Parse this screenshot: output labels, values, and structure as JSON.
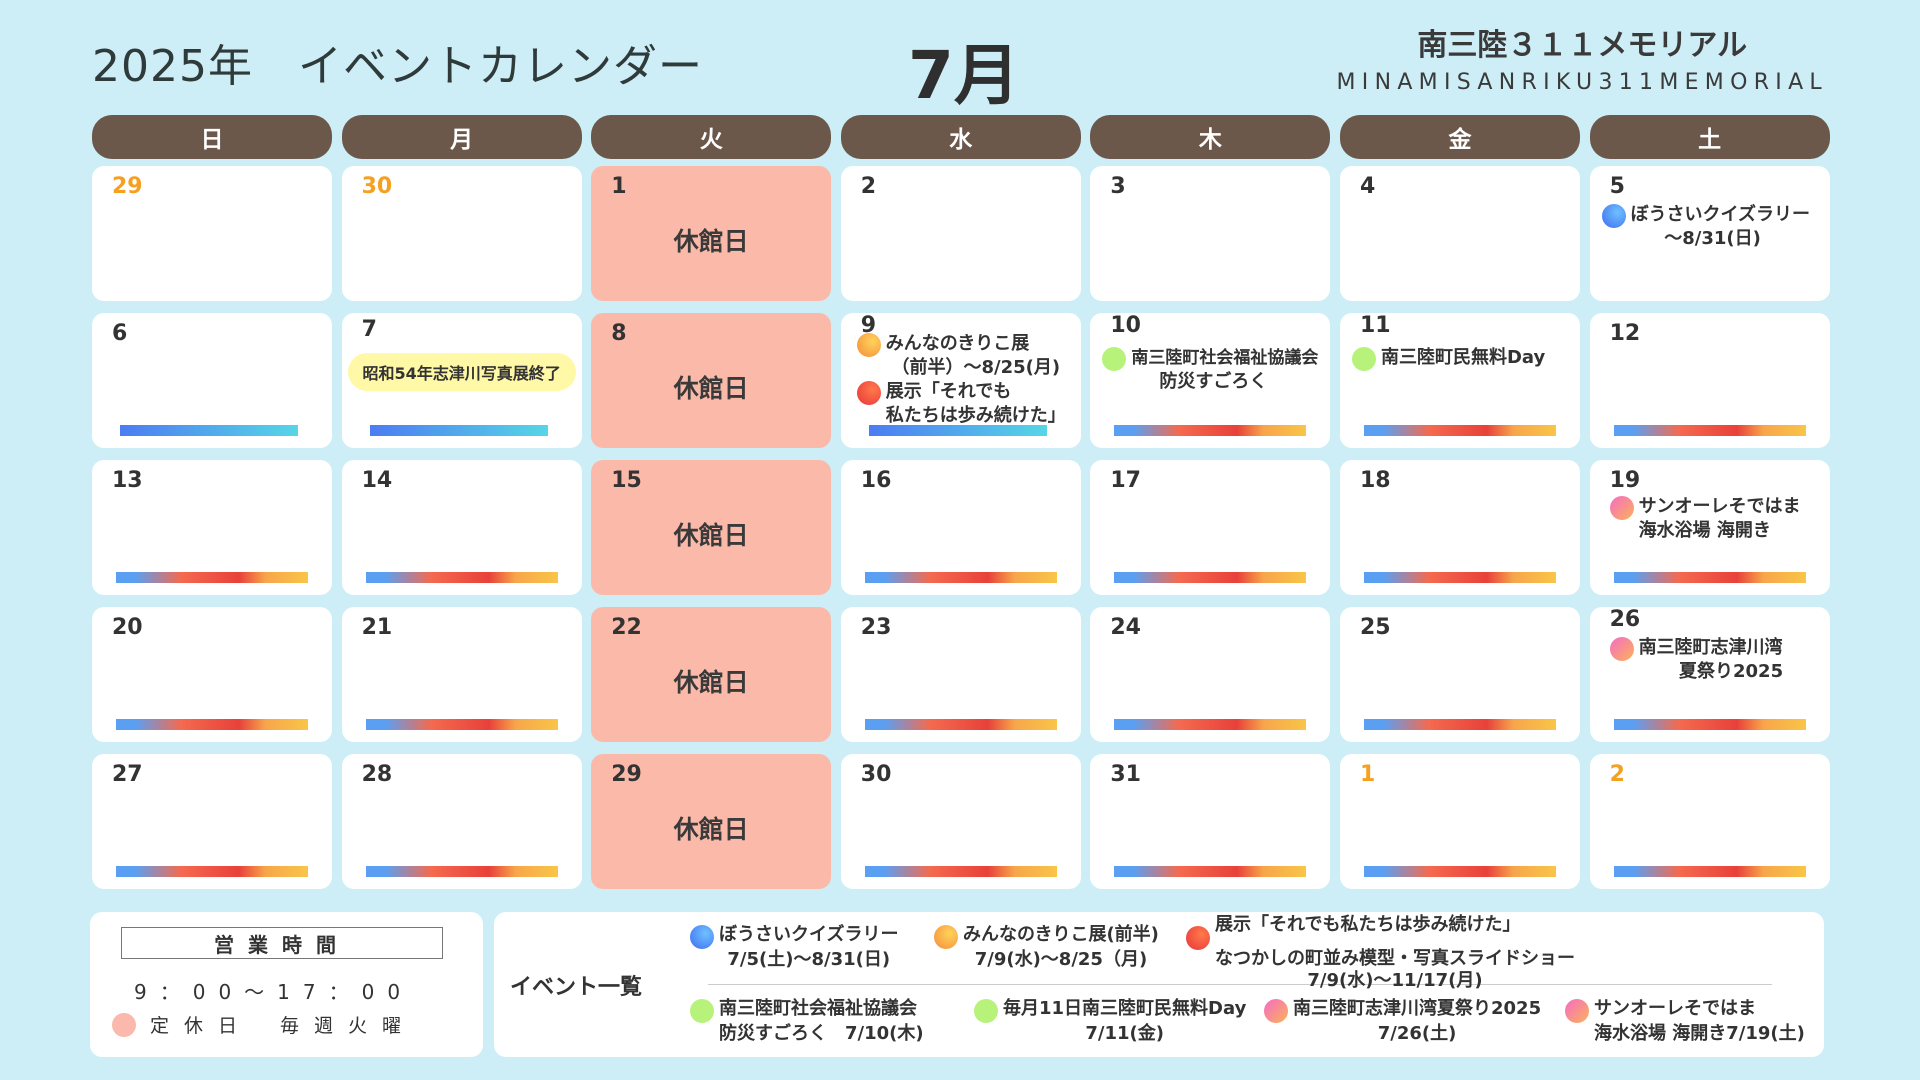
{
  "header": {
    "title": "2025年　イベントカレンダー",
    "month": "7月",
    "brand_jp": "南三陸３１１メモリアル",
    "brand_en": "MINAMISANRIKU311MEMORIAL"
  },
  "weekdays": [
    "日",
    "月",
    "火",
    "水",
    "木",
    "金",
    "土"
  ],
  "closed_label": "休館日",
  "days": {
    "w1": [
      "29",
      "30",
      "1",
      "2",
      "3",
      "4",
      "5"
    ],
    "w2": [
      "6",
      "7",
      "8",
      "9",
      "10",
      "11",
      "12"
    ],
    "w3": [
      "13",
      "14",
      "15",
      "16",
      "17",
      "18",
      "19"
    ],
    "w4": [
      "20",
      "21",
      "22",
      "23",
      "24",
      "25",
      "26"
    ],
    "w5": [
      "27",
      "28",
      "29",
      "30",
      "31",
      "1",
      "2"
    ]
  },
  "cell_events": {
    "jul5": {
      "line1": "ぼうさいクイズラリー",
      "line2": "〜8/31(日)"
    },
    "jul7": {
      "pill": "昭和54年志津川写真展終了"
    },
    "jul9": {
      "a1": "みんなのきりこ展",
      "a2": "（前半）〜8/25(月)",
      "b1": "展示「それでも",
      "b2": "私たちは歩み続けた」"
    },
    "jul10": {
      "line1": "南三陸町社会福祉協議会",
      "line2": "防災すごろく"
    },
    "jul11": {
      "line1": "南三陸町民無料Day"
    },
    "jul19": {
      "line1": "サンオーレそではま",
      "line2": "海水浴場 海開き"
    },
    "jul26": {
      "line1": "南三陸町志津川湾",
      "line2": "夏祭り2025"
    }
  },
  "hours": {
    "title": "営業時間",
    "time": "9：00〜17：00",
    "closed_label": "定休日",
    "closed_value": "毎週火曜"
  },
  "event_list": {
    "heading": "イベント一覧",
    "items": [
      {
        "icon": "blue-dot-icon",
        "l1": "ぼうさいクイズラリー",
        "l2": "7/5(土)〜8/31(日)"
      },
      {
        "icon": "orange-dot-icon",
        "l1": "みんなのきりこ展(前半)",
        "l2": "7/9(水)〜8/25（月)"
      },
      {
        "icon": "red-dot-icon",
        "l1": "展示「それでも私たちは歩み続けた」",
        "l2": "なつかしの町並み模型・写真スライドショー",
        "l3": "7/9(水)〜11/17(月)"
      },
      {
        "icon": "green-dot-icon",
        "l1": "南三陸町社会福祉協議会",
        "l2": "防災すごろく　7/10(木)"
      },
      {
        "icon": "green-dot-icon",
        "l1": "毎月11日南三陸町民無料Day",
        "l2": "7/11(金)"
      },
      {
        "icon": "pink-dot-icon",
        "l1": "南三陸町志津川湾夏祭り2025",
        "l2": "7/26(土)"
      },
      {
        "icon": "pink-dot-icon",
        "l1": "サンオーレそではま",
        "l2": "海水浴場 海開き7/19(土)"
      }
    ]
  },
  "colors": {
    "background": "#cdeef6",
    "header_bar": "#6b584b",
    "closed_cell": "#fbbaa9",
    "other_month_day": "#f5a020",
    "pill": "#fff8a6"
  }
}
